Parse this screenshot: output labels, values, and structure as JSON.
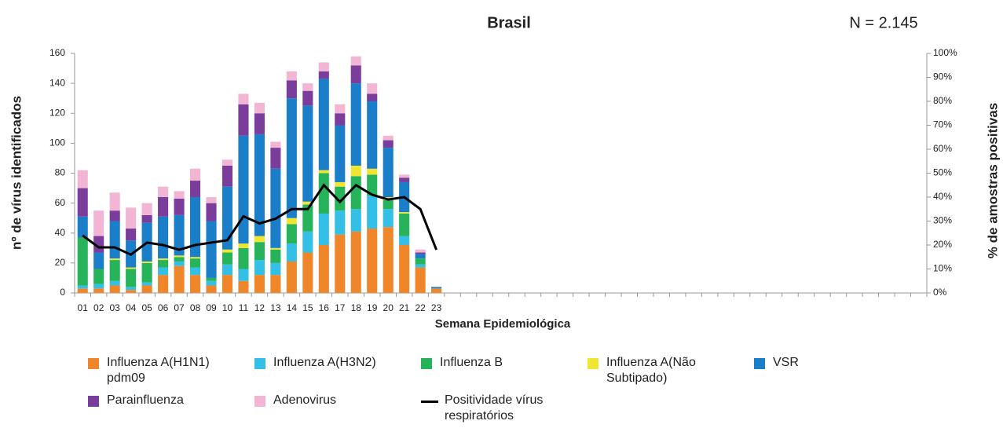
{
  "chart_data": {
    "type": "bar",
    "stacked": true,
    "title": "Brasil",
    "annotation": "N = 2.145",
    "x_label": "Semana Epidemiológica",
    "y_label": "nº de vírus identificados",
    "y2_label": "% de amostras positivas",
    "categories": [
      "01",
      "02",
      "03",
      "04",
      "05",
      "06",
      "07",
      "08",
      "09",
      "10",
      "11",
      "12",
      "13",
      "14",
      "15",
      "16",
      "17",
      "18",
      "19",
      "20",
      "21",
      "22",
      "23",
      null,
      null,
      null,
      null,
      null,
      null,
      null,
      null,
      null,
      null,
      null,
      null,
      null,
      null,
      null,
      null,
      null,
      null,
      null,
      null,
      null,
      null,
      null,
      null,
      null,
      null,
      null,
      null,
      null,
      null
    ],
    "ylim": [
      0,
      160
    ],
    "yticks": [
      0,
      20,
      40,
      60,
      80,
      100,
      120,
      140,
      160
    ],
    "y2lim": [
      0,
      100
    ],
    "y2ticks": [
      {
        "value": 0,
        "label": "0%"
      },
      {
        "value": 10,
        "label": "10%"
      },
      {
        "value": 20,
        "label": "20%"
      },
      {
        "value": 30,
        "label": "30%"
      },
      {
        "value": 40,
        "label": "40%"
      },
      {
        "value": 50,
        "label": "50%"
      },
      {
        "value": 60,
        "label": "60%"
      },
      {
        "value": 70,
        "label": "70%"
      },
      {
        "value": 80,
        "label": "80%"
      },
      {
        "value": 90,
        "label": "90%"
      },
      {
        "value": 100,
        "label": "100%"
      }
    ],
    "grid": false,
    "series": [
      {
        "name": "Influenza A(H1N1) pdm09",
        "color": "#f0862a",
        "values": [
          3,
          3,
          5,
          2,
          5,
          12,
          18,
          12,
          5,
          12,
          8,
          12,
          12,
          21,
          27,
          32,
          39,
          41,
          43,
          44,
          32,
          17,
          3,
          null,
          null,
          null,
          null,
          null,
          null,
          null,
          null,
          null,
          null,
          null,
          null,
          null,
          null,
          null,
          null,
          null,
          null,
          null,
          null,
          null,
          null,
          null,
          null,
          null,
          null,
          null,
          null,
          null,
          null
        ]
      },
      {
        "name": "Influenza A(H3N2)",
        "color": "#33bfe6",
        "values": [
          2,
          3,
          3,
          2,
          2,
          5,
          3,
          5,
          3,
          7,
          8,
          10,
          8,
          12,
          14,
          21,
          16,
          15,
          22,
          12,
          6,
          2,
          0,
          null,
          null,
          null,
          null,
          null,
          null,
          null,
          null,
          null,
          null,
          null,
          null,
          null,
          null,
          null,
          null,
          null,
          null,
          null,
          null,
          null,
          null,
          null,
          null,
          null,
          null,
          null,
          null,
          null,
          null
        ]
      },
      {
        "name": "Influenza B",
        "color": "#26b35a",
        "values": [
          32,
          10,
          14,
          12,
          13,
          5,
          3,
          6,
          2,
          8,
          14,
          12,
          9,
          13,
          18,
          27,
          16,
          22,
          14,
          6,
          15,
          4,
          0,
          null,
          null,
          null,
          null,
          null,
          null,
          null,
          null,
          null,
          null,
          null,
          null,
          null,
          null,
          null,
          null,
          null,
          null,
          null,
          null,
          null,
          null,
          null,
          null,
          null,
          null,
          null,
          null,
          null,
          null
        ]
      },
      {
        "name": "Influenza A(Não Subtipado)",
        "color": "#f0e632",
        "values": [
          0,
          0,
          1,
          1,
          1,
          1,
          1,
          1,
          0,
          2,
          3,
          4,
          1,
          4,
          2,
          2,
          3,
          7,
          4,
          2,
          1,
          0,
          0,
          null,
          null,
          null,
          null,
          null,
          null,
          null,
          null,
          null,
          null,
          null,
          null,
          null,
          null,
          null,
          null,
          null,
          null,
          null,
          null,
          null,
          null,
          null,
          null,
          null,
          null,
          null,
          null,
          null,
          null
        ]
      },
      {
        "name": "VSR",
        "color": "#1a7fc8",
        "values": [
          14,
          11,
          25,
          18,
          26,
          28,
          27,
          40,
          38,
          42,
          72,
          68,
          53,
          80,
          64,
          61,
          38,
          55,
          45,
          33,
          20,
          3,
          1,
          null,
          null,
          null,
          null,
          null,
          null,
          null,
          null,
          null,
          null,
          null,
          null,
          null,
          null,
          null,
          null,
          null,
          null,
          null,
          null,
          null,
          null,
          null,
          null,
          null,
          null,
          null,
          null,
          null,
          null
        ]
      },
      {
        "name": "Parainfluenza",
        "color": "#7a3d9b",
        "values": [
          19,
          11,
          7,
          8,
          5,
          13,
          11,
          11,
          12,
          14,
          21,
          14,
          14,
          12,
          10,
          5,
          8,
          12,
          5,
          5,
          3,
          1,
          0,
          null,
          null,
          null,
          null,
          null,
          null,
          null,
          null,
          null,
          null,
          null,
          null,
          null,
          null,
          null,
          null,
          null,
          null,
          null,
          null,
          null,
          null,
          null,
          null,
          null,
          null,
          null,
          null,
          null,
          null
        ]
      },
      {
        "name": "Adenovirus",
        "color": "#f2b5d4",
        "values": [
          12,
          17,
          12,
          14,
          8,
          7,
          5,
          8,
          4,
          4,
          7,
          7,
          4,
          6,
          5,
          6,
          6,
          6,
          7,
          3,
          2,
          2,
          0,
          null,
          null,
          null,
          null,
          null,
          null,
          null,
          null,
          null,
          null,
          null,
          null,
          null,
          null,
          null,
          null,
          null,
          null,
          null,
          null,
          null,
          null,
          null,
          null,
          null,
          null,
          null,
          null,
          null,
          null
        ]
      },
      {
        "name": "Positividade vírus respiratórios",
        "color": "#000000",
        "type": "line",
        "axis": "y2",
        "values": [
          24,
          19,
          19,
          16,
          21,
          20,
          18,
          20,
          21,
          22,
          32,
          29,
          31,
          35,
          35,
          45,
          38,
          45,
          41,
          39,
          40,
          35,
          18,
          null,
          null,
          null,
          null,
          null,
          null,
          null,
          null,
          null,
          null,
          null,
          null,
          null,
          null,
          null,
          null,
          null,
          null,
          null,
          null,
          null,
          null,
          null,
          null,
          null,
          null,
          null,
          null,
          null,
          null
        ]
      }
    ]
  }
}
